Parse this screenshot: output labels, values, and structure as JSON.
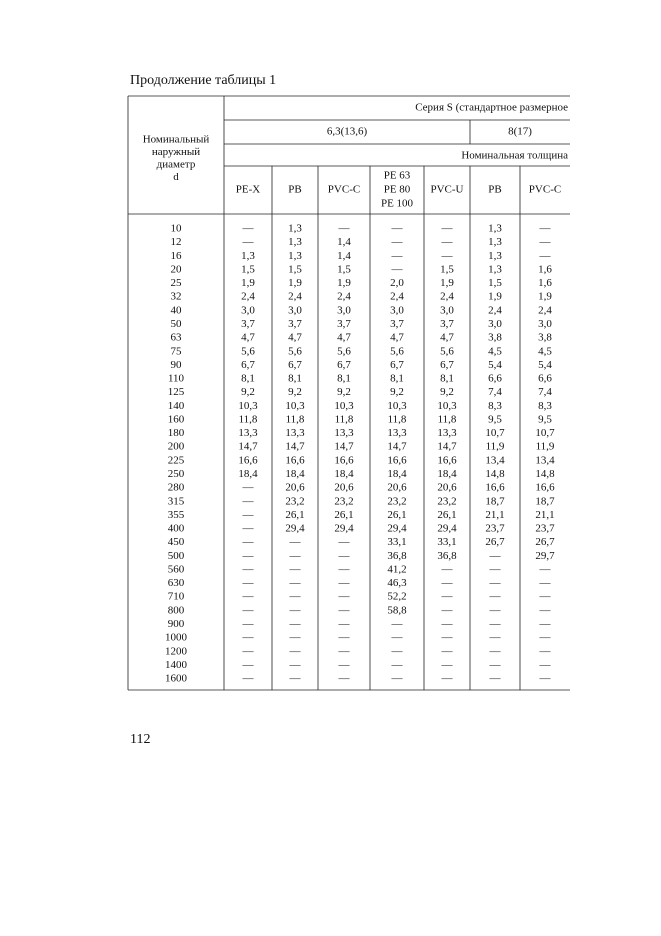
{
  "header": {
    "caption": "Продолжение таблицы 1"
  },
  "table": {
    "series_label": "Серия S (стандартное размерное",
    "series_groups": [
      "6,3(13,6)",
      "8(17)"
    ],
    "thickness_label": "Номинальная толщина",
    "diameter_header": [
      "Номинальный",
      "наружный",
      "диаметр",
      "d"
    ],
    "columns": [
      [
        "PE-X"
      ],
      [
        "PB"
      ],
      [
        "PVC-C"
      ],
      [
        "PE 63",
        "PE 80",
        "PE 100"
      ],
      [
        "PVC-U"
      ],
      [
        "PB"
      ],
      [
        "PVC-C"
      ]
    ],
    "rows": [
      [
        "10",
        "—",
        "1,3",
        "—",
        "—",
        "—",
        "1,3",
        "—"
      ],
      [
        "12",
        "—",
        "1,3",
        "1,4",
        "—",
        "—",
        "1,3",
        "—"
      ],
      [
        "16",
        "1,3",
        "1,3",
        "1,4",
        "—",
        "—",
        "1,3",
        "—"
      ],
      [
        "20",
        "1,5",
        "1,5",
        "1,5",
        "—",
        "1,5",
        "1,3",
        "1,6"
      ],
      [
        "25",
        "1,9",
        "1,9",
        "1,9",
        "2,0",
        "1,9",
        "1,5",
        "1,6"
      ],
      [
        "32",
        "2,4",
        "2,4",
        "2,4",
        "2,4",
        "2,4",
        "1,9",
        "1,9"
      ],
      [
        "40",
        "3,0",
        "3,0",
        "3,0",
        "3,0",
        "3,0",
        "2,4",
        "2,4"
      ],
      [
        "50",
        "3,7",
        "3,7",
        "3,7",
        "3,7",
        "3,7",
        "3,0",
        "3,0"
      ],
      [
        "63",
        "4,7",
        "4,7",
        "4,7",
        "4,7",
        "4,7",
        "3,8",
        "3,8"
      ],
      [
        "75",
        "5,6",
        "5,6",
        "5,6",
        "5,6",
        "5,6",
        "4,5",
        "4,5"
      ],
      [
        "90",
        "6,7",
        "6,7",
        "6,7",
        "6,7",
        "6,7",
        "5,4",
        "5,4"
      ],
      [
        "110",
        "8,1",
        "8,1",
        "8,1",
        "8,1",
        "8,1",
        "6,6",
        "6,6"
      ],
      [
        "125",
        "9,2",
        "9,2",
        "9,2",
        "9,2",
        "9,2",
        "7,4",
        "7,4"
      ],
      [
        "140",
        "10,3",
        "10,3",
        "10,3",
        "10,3",
        "10,3",
        "8,3",
        "8,3"
      ],
      [
        "160",
        "11,8",
        "11,8",
        "11,8",
        "11,8",
        "11,8",
        "9,5",
        "9,5"
      ],
      [
        "180",
        "13,3",
        "13,3",
        "13,3",
        "13,3",
        "13,3",
        "10,7",
        "10,7"
      ],
      [
        "200",
        "14,7",
        "14,7",
        "14,7",
        "14,7",
        "14,7",
        "11,9",
        "11,9"
      ],
      [
        "225",
        "16,6",
        "16,6",
        "16,6",
        "16,6",
        "16,6",
        "13,4",
        "13,4"
      ],
      [
        "250",
        "18,4",
        "18,4",
        "18,4",
        "18,4",
        "18,4",
        "14,8",
        "14,8"
      ],
      [
        "280",
        "—",
        "20,6",
        "20,6",
        "20,6",
        "20,6",
        "16,6",
        "16,6"
      ],
      [
        "315",
        "—",
        "23,2",
        "23,2",
        "23,2",
        "23,2",
        "18,7",
        "18,7"
      ],
      [
        "355",
        "—",
        "26,1",
        "26,1",
        "26,1",
        "26,1",
        "21,1",
        "21,1"
      ],
      [
        "400",
        "—",
        "29,4",
        "29,4",
        "29,4",
        "29,4",
        "23,7",
        "23,7"
      ],
      [
        "450",
        "—",
        "—",
        "—",
        "33,1",
        "33,1",
        "26,7",
        "26,7"
      ],
      [
        "500",
        "—",
        "—",
        "—",
        "36,8",
        "36,8",
        "—",
        "29,7"
      ],
      [
        "560",
        "—",
        "—",
        "—",
        "41,2",
        "—",
        "—",
        "—"
      ],
      [
        "630",
        "—",
        "—",
        "—",
        "46,3",
        "—",
        "—",
        "—"
      ],
      [
        "710",
        "—",
        "—",
        "—",
        "52,2",
        "—",
        "—",
        "—"
      ],
      [
        "800",
        "—",
        "—",
        "—",
        "58,8",
        "—",
        "—",
        "—"
      ],
      [
        "900",
        "—",
        "—",
        "—",
        "—",
        "—",
        "—",
        "—"
      ],
      [
        "1000",
        "—",
        "—",
        "—",
        "—",
        "—",
        "—",
        "—"
      ],
      [
        "1200",
        "—",
        "—",
        "—",
        "—",
        "—",
        "—",
        "—"
      ],
      [
        "1400",
        "—",
        "—",
        "—",
        "—",
        "—",
        "—",
        "—"
      ],
      [
        "1600",
        "—",
        "—",
        "—",
        "—",
        "—",
        "—",
        "—"
      ]
    ]
  },
  "page_number": "112"
}
